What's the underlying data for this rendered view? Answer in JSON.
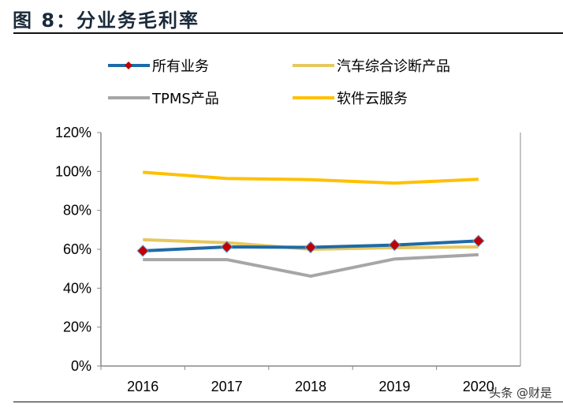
{
  "title": "图 8：分业务毛利率",
  "watermark": "头条 @财是",
  "chart_data": {
    "type": "line",
    "title": "",
    "categories": [
      "2016",
      "2017",
      "2018",
      "2019",
      "2020"
    ],
    "ylim": [
      0,
      120
    ],
    "yticks": [
      "0%",
      "20%",
      "40%",
      "60%",
      "80%",
      "100%",
      "120%"
    ],
    "grid": false,
    "legend_position": "top",
    "series": [
      {
        "name": "所有业务",
        "color": "#1f6aa5",
        "marker": "diamond",
        "marker_color": "#c00000",
        "values": [
          59.2,
          61.2,
          61.0,
          62.2,
          64.3
        ]
      },
      {
        "name": "汽车综合诊断产品",
        "color": "#e6c860",
        "values": [
          64.9,
          63.4,
          60.0,
          60.8,
          61.2
        ]
      },
      {
        "name": "TPMS产品",
        "color": "#a6a6a6",
        "values": [
          54.7,
          54.7,
          46.2,
          55.0,
          57.2
        ]
      },
      {
        "name": "软件云服务",
        "color": "#ffc000",
        "values": [
          99.6,
          96.4,
          95.8,
          94.0,
          96.0
        ]
      }
    ]
  }
}
